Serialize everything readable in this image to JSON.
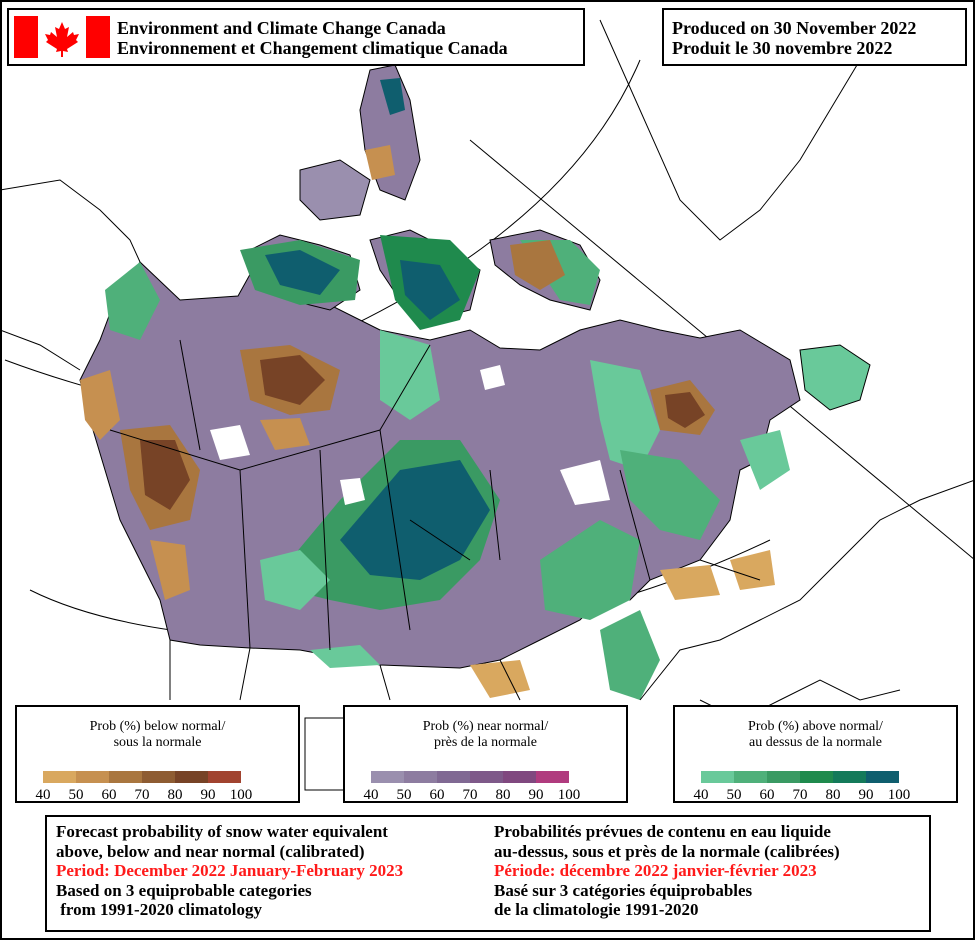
{
  "header": {
    "agency_en": "Environment and Climate Change Canada",
    "agency_fr": "Environnement et Changement climatique Canada",
    "produced_en": "Produced on 30 November 2022",
    "produced_fr": "Produit le 30 novembre 2022"
  },
  "flag": {
    "red": "#ff0000",
    "white": "#ffffff"
  },
  "legends": [
    {
      "id": "below",
      "title_en": "Prob (%) below normal/",
      "title_fr": "sous la normale",
      "colors": [
        "#d9a85f",
        "#c69050",
        "#a9763f",
        "#8e5c32",
        "#774326",
        "#a1432f"
      ],
      "ticks": [
        "40",
        "50",
        "60",
        "70",
        "80",
        "90",
        "100"
      ]
    },
    {
      "id": "near",
      "title_en": "Prob (%) near normal/",
      "title_fr": "près de la normale",
      "colors": [
        "#9a8fae",
        "#8d7ca0",
        "#806993",
        "#7e5989",
        "#80487f",
        "#b03b7e"
      ],
      "ticks": [
        "40",
        "50",
        "60",
        "70",
        "80",
        "90",
        "100"
      ]
    },
    {
      "id": "above",
      "title_en": "Prob (%) above normal/",
      "title_fr": "au dessus de la normale",
      "colors": [
        "#69c99a",
        "#4fb07a",
        "#3a9a63",
        "#1f8a4d",
        "#147a5a",
        "#0f5e6e"
      ],
      "ticks": [
        "40",
        "50",
        "60",
        "70",
        "80",
        "90",
        "100"
      ]
    }
  ],
  "footer": {
    "en_line1": "Forecast probability of snow water equivalent",
    "en_line2": "above, below and near normal (calibrated)",
    "en_period": "Period: December 2022 January-February 2023",
    "en_line4": "Based on 3 equiprobable categories",
    "en_line5": " from 1991-2020 climatology",
    "fr_line1": "Probabilités prévues de contenu en eau liquide",
    "fr_line2": "au-dessus, sous et près de la normale (calibrées)",
    "fr_period": "Période: décembre 2022 janvier-février 2023",
    "fr_line4": "Basé sur 3 catégories équiprobables",
    "fr_line5": "de la climatologie 1991-2020"
  },
  "map_colors": {
    "near": "#8d7ca0",
    "near_light": "#9a8fae",
    "below_light": "#d9a85f",
    "below_mid": "#a9763f",
    "below_dark": "#774326",
    "above_light": "#69c99a",
    "above_mid": "#3a9a63",
    "above_dark": "#0f5e6e"
  }
}
